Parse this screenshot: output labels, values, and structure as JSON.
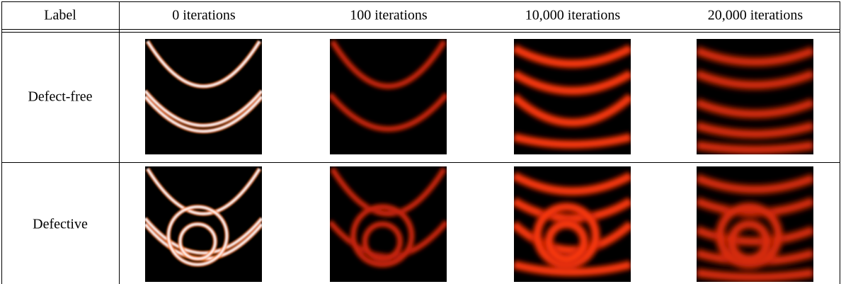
{
  "table": {
    "header": [
      "Label",
      "0 iterations",
      "100 iterations",
      "10,000 iterations",
      "20,000 iterations"
    ],
    "rows": [
      {
        "label": "Defect-free"
      },
      {
        "label": "Defective"
      }
    ]
  }
}
